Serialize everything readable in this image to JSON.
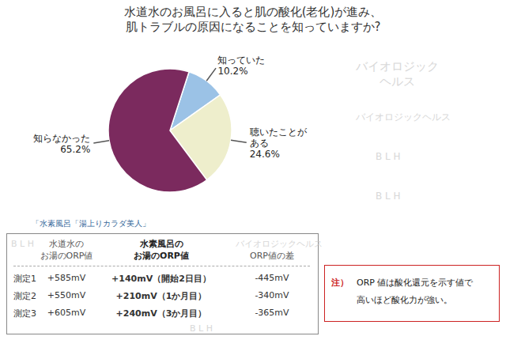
{
  "chart_data": {
    "type": "pie",
    "title": "水道水のお風呂に入ると肌の酸化(老化)が進み、\n肌トラブルの原因になることを知っていますか?",
    "categories": [
      "知っていた",
      "聴いたことが\nある",
      "知らなかった"
    ],
    "values": [
      10.2,
      24.6,
      65.2
    ],
    "value_labels": [
      "10.2%",
      "24.6%",
      "65.2%"
    ],
    "data_labels": true,
    "colors": [
      "#9bc2e6",
      "#eeeecc",
      "#7b2a5e"
    ],
    "source": "「水素風呂「湯上りカラダ美人」",
    "table": {
      "columns": [
        "水道水の\nお湯のORP値",
        "水素風呂の\nお湯のORP値",
        "ORP値の差"
      ],
      "rows": [
        [
          "測定1",
          "+585mV",
          "+140mV（開始2日目）",
          "-445mV"
        ],
        [
          "測定2",
          "+550mV",
          "+210mV（1か月目）",
          "-340mV"
        ],
        [
          "測定3",
          "+605mV",
          "+240mV（3か月目）",
          "-365mV"
        ]
      ]
    },
    "note": {
      "label": "注）",
      "lines": [
        "ORP 値は酸化還元を示す値で",
        "高いほど酸化力が強い。"
      ]
    },
    "watermarks": [
      "バイオロジック\nヘルス",
      "バイオロジックヘルス",
      "B L H",
      "B L H",
      "バイオロジックヘルス",
      "B L H",
      "B L H"
    ]
  }
}
